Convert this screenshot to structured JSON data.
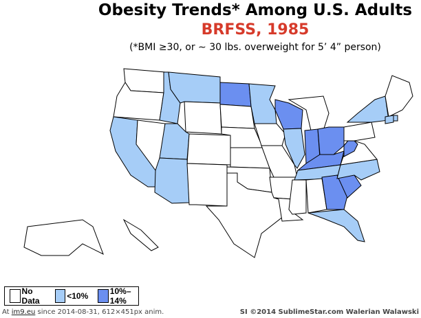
{
  "title": "Obesity Trends*  Among U.S. Adults",
  "subtitle": "BRFSS, 1985",
  "note": "(*BMI ≥30, or ∼ 30 lbs. overweight for 5’ 4” person)",
  "colors": {
    "no_data": "#ffffff",
    "low": "#a6cdf7",
    "mid": "#6b8ff0",
    "subtitle": "#d63a2a"
  },
  "legend": [
    {
      "label": "No Data",
      "key": "no_data"
    },
    {
      "label": "<10%",
      "key": "low"
    },
    {
      "label": "10%–14%",
      "key": "mid"
    }
  ],
  "states": {
    "WA": "no_data",
    "OR": "no_data",
    "CA": "low",
    "NV": "no_data",
    "ID": "low",
    "MT": "low",
    "WY": "no_data",
    "UT": "low",
    "CO": "no_data",
    "AZ": "low",
    "NM": "no_data",
    "ND": "mid",
    "SD": "no_data",
    "NE": "no_data",
    "KS": "no_data",
    "OK": "no_data",
    "TX": "no_data",
    "MN": "low",
    "IA": "no_data",
    "MO": "no_data",
    "AR": "no_data",
    "LA": "no_data",
    "WI": "mid",
    "IL": "low",
    "MI": "no_data",
    "IN": "mid",
    "OH": "mid",
    "KY": "mid",
    "TN": "low",
    "MS": "no_data",
    "AL": "no_data",
    "GA": "mid",
    "FL": "low",
    "SC": "mid",
    "NC": "low",
    "VA": "no_data",
    "WV": "mid",
    "PA": "no_data",
    "NY": "low",
    "NE_REGION": "no_data",
    "CT": "low",
    "RI": "low",
    "AK": "no_data",
    "HI": "no_data"
  },
  "footer": {
    "left_prefix": "At ",
    "left_link": "im9.eu",
    "left_suffix": " since 2014-08-31, 612×451px anim.",
    "right": "SI ©2014 SublimeStar.com Walerian Walawski"
  }
}
